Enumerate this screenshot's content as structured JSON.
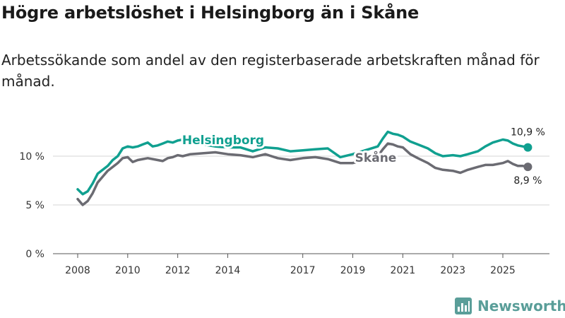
{
  "header": {
    "title": "Högre arbetslöshet i Helsingborg än i Skåne",
    "subtitle": "Arbetssökande som andel av den registerbaserade arbetskraften månad för månad."
  },
  "branding": {
    "name": "Newsworthy",
    "icon": "bar-chart-logo-icon",
    "color": "#5a9e99"
  },
  "chart_data": {
    "type": "line",
    "title": "Högre arbetslöshet i Helsingborg än i Skåne",
    "xlabel": "",
    "ylabel": "",
    "xlim": [
      2007.6,
      2026.7
    ],
    "ylim": [
      0,
      12.5
    ],
    "grid": true,
    "y_ticks": [
      {
        "value": 0,
        "label": "0 %"
      },
      {
        "value": 5,
        "label": "5 %"
      },
      {
        "value": 10,
        "label": "10 %"
      }
    ],
    "x_ticks": [
      {
        "value": 2008,
        "label": "2008"
      },
      {
        "value": 2010,
        "label": "2010"
      },
      {
        "value": 2012,
        "label": "2012"
      },
      {
        "value": 2014,
        "label": "2014"
      },
      {
        "value": 2017,
        "label": "2017"
      },
      {
        "value": 2019,
        "label": "2019"
      },
      {
        "value": 2021,
        "label": "2021"
      },
      {
        "value": 2023,
        "label": "2023"
      },
      {
        "value": 2025,
        "label": "2025"
      }
    ],
    "series": [
      {
        "name": "Helsingborg",
        "color": "#10a090",
        "last_label": "10,9 %",
        "x": [
          2008.0,
          2008.2,
          2008.4,
          2008.6,
          2008.8,
          2009.0,
          2009.2,
          2009.4,
          2009.6,
          2009.8,
          2010.0,
          2010.2,
          2010.4,
          2010.6,
          2010.8,
          2011.0,
          2011.2,
          2011.4,
          2011.6,
          2011.8,
          2012.0,
          2012.2,
          2012.5,
          2013.0,
          2013.5,
          2014.0,
          2014.5,
          2015.0,
          2015.5,
          2016.0,
          2016.5,
          2017.0,
          2017.5,
          2018.0,
          2018.5,
          2019.0,
          2019.5,
          2020.0,
          2020.2,
          2020.4,
          2020.6,
          2020.8,
          2021.0,
          2021.3,
          2021.6,
          2022.0,
          2022.3,
          2022.6,
          2023.0,
          2023.3,
          2023.6,
          2024.0,
          2024.3,
          2024.6,
          2025.0,
          2025.2,
          2025.4,
          2025.6,
          2025.8,
          2026.0
        ],
        "values": [
          6.6,
          6.1,
          6.4,
          7.2,
          8.2,
          8.6,
          9.0,
          9.6,
          10.0,
          10.8,
          11.0,
          10.9,
          11.0,
          11.2,
          11.4,
          11.0,
          11.1,
          11.3,
          11.5,
          11.4,
          11.6,
          11.7,
          11.4,
          11.2,
          11.0,
          10.9,
          10.9,
          10.5,
          10.9,
          10.8,
          10.5,
          10.6,
          10.7,
          10.8,
          9.9,
          10.2,
          10.6,
          11.0,
          11.8,
          12.5,
          12.3,
          12.2,
          12.0,
          11.5,
          11.2,
          10.8,
          10.3,
          10.0,
          10.1,
          10.0,
          10.2,
          10.5,
          11.0,
          11.4,
          11.7,
          11.6,
          11.3,
          11.1,
          11.0,
          10.9
        ]
      },
      {
        "name": "Skåne",
        "color": "#6b6b72",
        "last_label": "8,9 %",
        "x": [
          2008.0,
          2008.2,
          2008.4,
          2008.6,
          2008.8,
          2009.0,
          2009.2,
          2009.4,
          2009.6,
          2009.8,
          2010.0,
          2010.2,
          2010.4,
          2010.6,
          2010.8,
          2011.0,
          2011.2,
          2011.4,
          2011.6,
          2011.8,
          2012.0,
          2012.2,
          2012.5,
          2013.0,
          2013.5,
          2014.0,
          2014.5,
          2015.0,
          2015.5,
          2016.0,
          2016.5,
          2017.0,
          2017.5,
          2018.0,
          2018.5,
          2019.0,
          2019.5,
          2020.0,
          2020.2,
          2020.4,
          2020.6,
          2020.8,
          2021.0,
          2021.3,
          2021.6,
          2022.0,
          2022.3,
          2022.6,
          2023.0,
          2023.3,
          2023.6,
          2024.0,
          2024.3,
          2024.6,
          2025.0,
          2025.2,
          2025.4,
          2025.6,
          2025.8,
          2026.0
        ],
        "values": [
          5.6,
          5.0,
          5.4,
          6.2,
          7.3,
          7.9,
          8.5,
          8.9,
          9.3,
          9.8,
          9.9,
          9.4,
          9.6,
          9.7,
          9.8,
          9.7,
          9.6,
          9.5,
          9.8,
          9.9,
          10.1,
          10.0,
          10.2,
          10.3,
          10.4,
          10.2,
          10.1,
          9.9,
          10.2,
          9.8,
          9.6,
          9.8,
          9.9,
          9.7,
          9.3,
          9.3,
          9.6,
          10.0,
          10.7,
          11.3,
          11.2,
          11.0,
          10.9,
          10.2,
          9.8,
          9.3,
          8.8,
          8.6,
          8.5,
          8.3,
          8.6,
          8.9,
          9.1,
          9.1,
          9.3,
          9.5,
          9.2,
          9.0,
          9.0,
          8.9
        ]
      }
    ],
    "annotations": [
      {
        "text": "Helsingborg",
        "series": "Helsingborg"
      },
      {
        "text": "Skåne",
        "series": "Skåne"
      }
    ]
  }
}
